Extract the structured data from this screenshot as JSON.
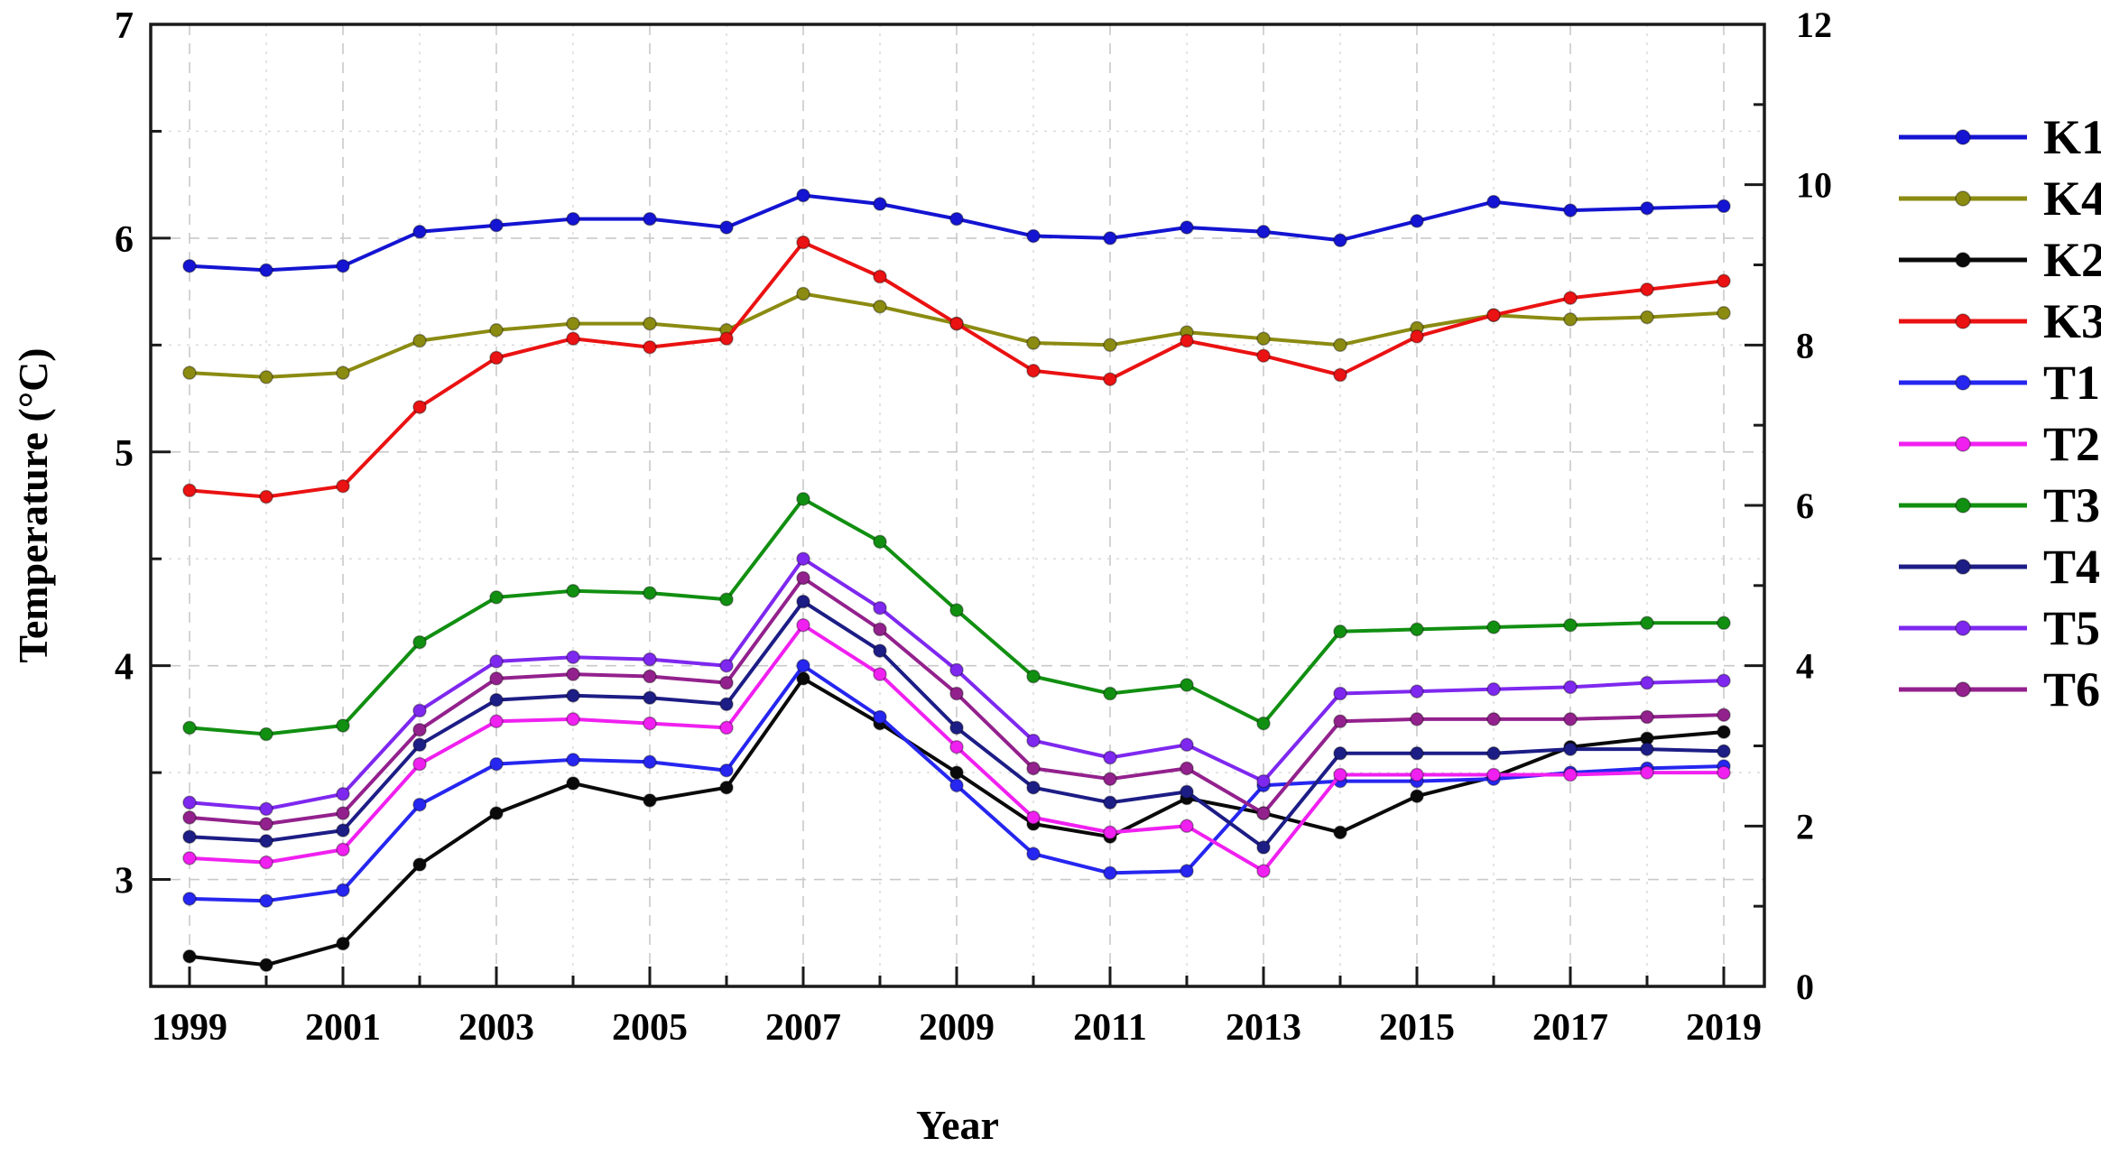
{
  "figure": {
    "x_axis": {
      "label": "Year",
      "major_ticks": [
        1999,
        2001,
        2003,
        2005,
        2007,
        2009,
        2011,
        2013,
        2015,
        2017,
        2019
      ],
      "minor_ticks": [
        2000,
        2002,
        2004,
        2006,
        2008,
        2010,
        2012,
        2014,
        2016,
        2018
      ],
      "range": [
        1998.5,
        2019.53
      ]
    },
    "y_left": {
      "label": "Temperature (°C)",
      "range": [
        2.5,
        7
      ],
      "major_ticks": [
        3,
        4,
        5,
        6,
        7
      ],
      "minor_step": 0.5,
      "grid": "dashed every 0.5"
    },
    "y_right": {
      "label": "",
      "range": [
        0,
        12
      ],
      "major_ticks": [
        0,
        2,
        4,
        6,
        8,
        10,
        12
      ],
      "minor_step": 1
    }
  },
  "legend": {
    "position": "right",
    "entries": [
      "K1",
      "K4",
      "K2",
      "K3",
      "T1",
      "T2",
      "T3",
      "T4",
      "T5",
      "T6"
    ]
  },
  "chart_data": {
    "type": "line",
    "title": "",
    "xlabel": "Year",
    "ylabel": "Temperature (°C)",
    "x": [
      1999,
      2000,
      2001,
      2002,
      2003,
      2004,
      2005,
      2006,
      2007,
      2008,
      2009,
      2010,
      2011,
      2012,
      2013,
      2014,
      2015,
      2016,
      2017,
      2018,
      2019
    ],
    "ylim_left": [
      2.5,
      7
    ],
    "ylim_right": [
      0,
      12
    ],
    "grid": true,
    "marker": "circle",
    "series": [
      {
        "name": "K1",
        "color": "#1414d2",
        "axis": "left",
        "values": [
          5.87,
          5.85,
          5.87,
          6.03,
          6.06,
          6.09,
          6.09,
          6.05,
          6.2,
          6.16,
          6.09,
          6.01,
          6.0,
          6.05,
          6.03,
          5.99,
          6.08,
          6.17,
          6.13,
          6.14,
          6.15
        ]
      },
      {
        "name": "K4",
        "color": "#8b8b12",
        "axis": "left",
        "values": [
          5.37,
          5.35,
          5.37,
          5.52,
          5.57,
          5.6,
          5.6,
          5.57,
          5.74,
          5.68,
          5.6,
          5.51,
          5.5,
          5.56,
          5.53,
          5.5,
          5.58,
          5.64,
          5.62,
          5.63,
          5.65
        ]
      },
      {
        "name": "K2",
        "color": "#0a0a0a",
        "axis": "left",
        "values": [
          2.64,
          2.6,
          2.7,
          3.07,
          3.31,
          3.45,
          3.37,
          3.43,
          3.94,
          3.73,
          3.5,
          3.26,
          3.2,
          3.38,
          3.31,
          3.22,
          3.39,
          3.48,
          3.62,
          3.66,
          3.69
        ]
      },
      {
        "name": "K3",
        "color": "#ea1212",
        "axis": "left",
        "values": [
          4.82,
          4.79,
          4.84,
          5.21,
          5.44,
          5.53,
          5.49,
          5.53,
          5.98,
          5.82,
          5.6,
          5.38,
          5.34,
          5.52,
          5.45,
          5.36,
          5.54,
          5.64,
          5.72,
          5.76,
          5.8
        ]
      },
      {
        "name": "T1",
        "color": "#2626f0",
        "axis": "left",
        "values": [
          2.91,
          2.9,
          2.95,
          3.35,
          3.54,
          3.56,
          3.55,
          3.51,
          4.0,
          3.76,
          3.44,
          3.12,
          3.03,
          3.04,
          3.44,
          3.46,
          3.46,
          3.47,
          3.5,
          3.52,
          3.53
        ]
      },
      {
        "name": "T2",
        "color": "#f020f0",
        "axis": "left",
        "values": [
          3.1,
          3.08,
          3.14,
          3.54,
          3.74,
          3.75,
          3.73,
          3.71,
          4.19,
          3.96,
          3.62,
          3.29,
          3.22,
          3.25,
          3.04,
          3.49,
          3.49,
          3.49,
          3.49,
          3.5,
          3.5
        ]
      },
      {
        "name": "T3",
        "color": "#118f11",
        "axis": "left",
        "values": [
          3.71,
          3.68,
          3.72,
          4.11,
          4.32,
          4.35,
          4.34,
          4.31,
          4.78,
          4.58,
          4.26,
          3.95,
          3.87,
          3.91,
          3.73,
          4.16,
          4.17,
          4.18,
          4.19,
          4.2,
          4.2
        ]
      },
      {
        "name": "T4",
        "color": "#1d1d86",
        "axis": "left",
        "values": [
          3.2,
          3.18,
          3.23,
          3.63,
          3.84,
          3.86,
          3.85,
          3.82,
          4.3,
          4.07,
          3.71,
          3.43,
          3.36,
          3.41,
          3.15,
          3.59,
          3.59,
          3.59,
          3.61,
          3.61,
          3.6
        ]
      },
      {
        "name": "T5",
        "color": "#7e28ef",
        "axis": "left",
        "values": [
          3.36,
          3.33,
          3.4,
          3.79,
          4.02,
          4.04,
          4.03,
          4.0,
          4.5,
          4.27,
          3.98,
          3.65,
          3.57,
          3.63,
          3.46,
          3.87,
          3.88,
          3.89,
          3.9,
          3.92,
          3.93
        ]
      },
      {
        "name": "T6",
        "color": "#93218d",
        "axis": "left",
        "values": [
          3.29,
          3.26,
          3.31,
          3.7,
          3.94,
          3.96,
          3.95,
          3.92,
          4.41,
          4.17,
          3.87,
          3.52,
          3.47,
          3.52,
          3.31,
          3.74,
          3.75,
          3.75,
          3.75,
          3.76,
          3.77
        ]
      }
    ]
  }
}
